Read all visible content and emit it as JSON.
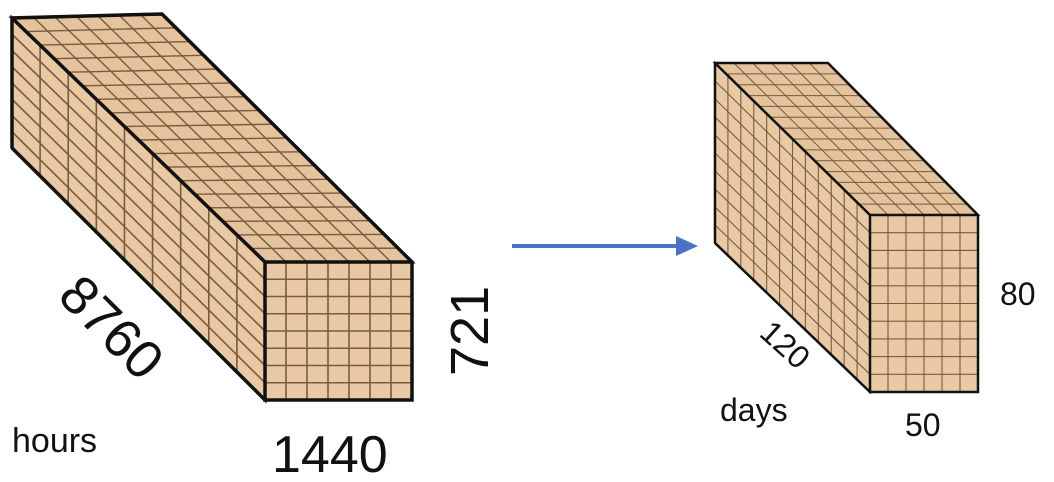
{
  "colors": {
    "cube_fill": "#e9c9a3",
    "cube_top": "#e4c39d",
    "grid_line": "#7a5a40",
    "edge": "#111111",
    "arrow": "#4a72c4",
    "background": "#ffffff"
  },
  "left_cube": {
    "depth_label": "8760",
    "width_label": "1440",
    "height_label": "721",
    "axis_caption": "hours"
  },
  "right_cube": {
    "depth_label": "120",
    "width_label": "50",
    "height_label": "80",
    "axis_caption": "days"
  },
  "arrow_icon": "arrow-right-icon"
}
